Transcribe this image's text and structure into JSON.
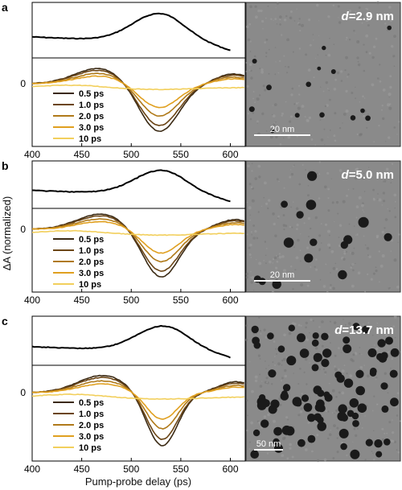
{
  "panels": [
    {
      "letter": "a",
      "diameter_prefix": "d",
      "diameter_value": "=2.9 nm",
      "scale_bar": "20 nm",
      "abs_peak": 528,
      "bleach_peak": 528,
      "bleach_width": 28,
      "abs_series_y": [
        0.3,
        0.28,
        0.32,
        0.44,
        0.65,
        0.86,
        1.0,
        0.85,
        0.45,
        0.02
      ]
    },
    {
      "letter": "b",
      "diameter_prefix": "d",
      "diameter_value": "=5.0 nm",
      "scale_bar": "20 nm",
      "abs_peak": 530,
      "bleach_peak": 530,
      "bleach_width": 26
    },
    {
      "letter": "c",
      "diameter_prefix": "d",
      "diameter_value": "=13.7 nm",
      "scale_bar": "50 nm",
      "abs_peak": 532,
      "bleach_peak": 531,
      "bleach_width": 22
    }
  ],
  "chart_data": {
    "type": "line",
    "xlabel": "Pump-probe delay (ps)",
    "ylabel": "ΔA (normalized)",
    "x_ticks": [
      "400",
      "450",
      "500",
      "550",
      "600"
    ],
    "y_tick": "0",
    "xlim": [
      400,
      615
    ],
    "legend": [
      "0.5 ps",
      "1.0 ps",
      "2.0 ps",
      "3.0 ps",
      "10  ps"
    ],
    "series": [
      {
        "name": "0.5 ps",
        "color": "#3b2a14",
        "amp": 1.0
      },
      {
        "name": "1.0 ps",
        "color": "#6b4516",
        "amp": 0.88
      },
      {
        "name": "2.0 ps",
        "color": "#b07a1a",
        "amp": 0.68
      },
      {
        "name": "3.0 ps",
        "color": "#e0a020",
        "amp": 0.5
      },
      {
        "name": "10  ps",
        "color": "#f2cf5c",
        "amp": 0.12
      }
    ]
  }
}
